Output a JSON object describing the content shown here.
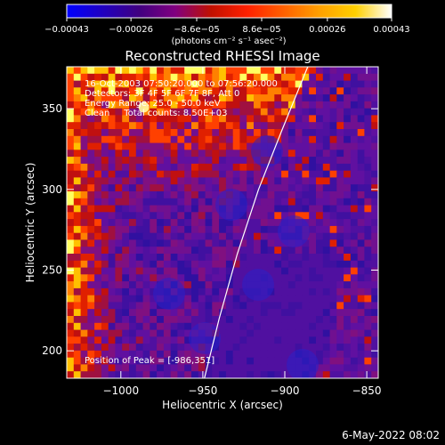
{
  "chart_data": {
    "type": "heatmap",
    "title": "Reconstructed RHESSI Image",
    "xlabel": "Heliocentric X (arcsec)",
    "ylabel": "Heliocentric Y (arcsec)",
    "xlim": [
      -1033,
      -843
    ],
    "ylim": [
      183,
      376
    ],
    "x_ticks": [
      {
        "value": -1000,
        "label": "−1000"
      },
      {
        "value": -950,
        "label": "−950"
      },
      {
        "value": -900,
        "label": "−900"
      },
      {
        "value": -850,
        "label": "−850"
      }
    ],
    "y_ticks": [
      {
        "value": 200,
        "label": "200"
      },
      {
        "value": 250,
        "label": "250"
      },
      {
        "value": 300,
        "label": "300"
      },
      {
        "value": 350,
        "label": "350"
      }
    ],
    "colorbar": {
      "range": [
        -0.00043,
        0.00043
      ],
      "ticks": [
        {
          "value": -0.00043,
          "label": "−0.00043"
        },
        {
          "value": -0.00026,
          "label": "−0.00026"
        },
        {
          "value": -8.6e-05,
          "label": "−8.6e−05"
        },
        {
          "value": 8.6e-05,
          "label": "8.6e−05"
        },
        {
          "value": 0.00026,
          "label": "0.00026"
        },
        {
          "value": 0.00043,
          "label": "0.00043"
        }
      ],
      "unit_label": "(photons cm⁻² s⁻¹ asec⁻²)",
      "colors": [
        "#0000ff",
        "#2000c0",
        "#400080",
        "#800080",
        "#c01000",
        "#ff2000",
        "#ff6000",
        "#ffa000",
        "#ffd000",
        "#ffffff"
      ]
    },
    "annotations": [
      "16-Oct-2003 07:50:20.000 to 07:56:20.000",
      "Detectors: 3F 4F 5F 6F 7F 8F, Att 0",
      "Energy Range: 25.0 - 50.0 keV",
      "Clean     Total counts: 8.50E+03"
    ],
    "peak_label": "Position of Peak = [-986,351]",
    "peak": {
      "x": -986,
      "y": 351
    },
    "limb_curve": [
      {
        "x": -949,
        "y": 183
      },
      {
        "x": -940,
        "y": 220
      },
      {
        "x": -929,
        "y": 260
      },
      {
        "x": -916,
        "y": 300
      },
      {
        "x": -902,
        "y": 336
      },
      {
        "x": -886,
        "y": 376
      }
    ]
  },
  "footer": {
    "date": "6-May-2022 08:02"
  }
}
